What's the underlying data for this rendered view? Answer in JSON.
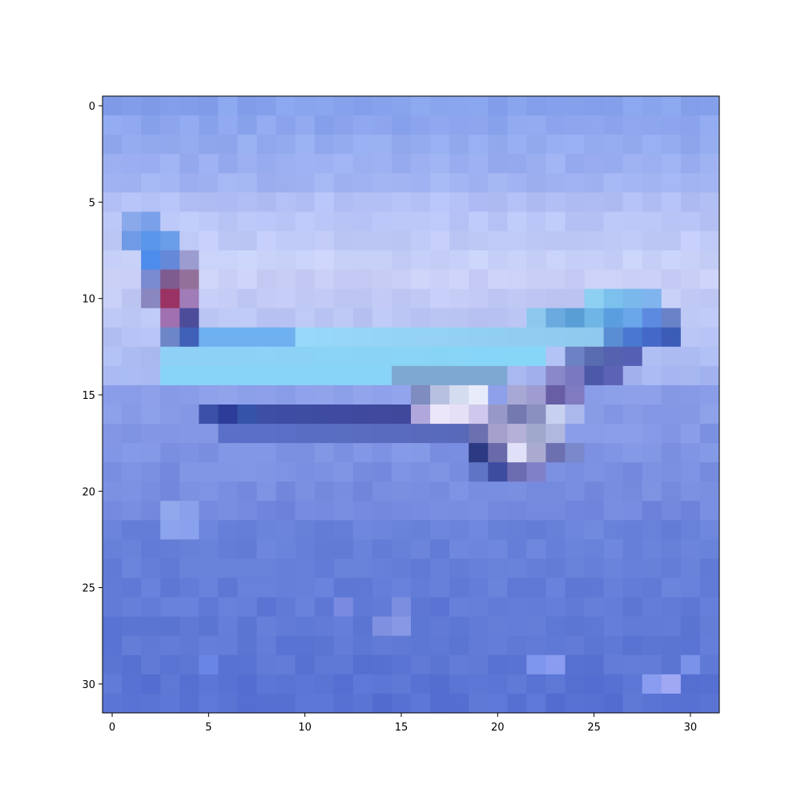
{
  "figure": {
    "image_rows": 32,
    "image_cols": 32,
    "x_ticks": [
      "0",
      "5",
      "10",
      "15",
      "20",
      "25",
      "30"
    ],
    "y_ticks": [
      "0",
      "5",
      "10",
      "15",
      "20",
      "25",
      "30"
    ],
    "subject": "airplane over water (low-resolution pixelated image)",
    "colors": {
      "sky_top": "#8aa6ee",
      "sky_light": "#c9d1f6",
      "fuselage_cyan": "#8fd6f6",
      "fuselage_dark": "#3f52a8",
      "water": "#5f7fd8",
      "tail_red": "#9a3363"
    }
  }
}
